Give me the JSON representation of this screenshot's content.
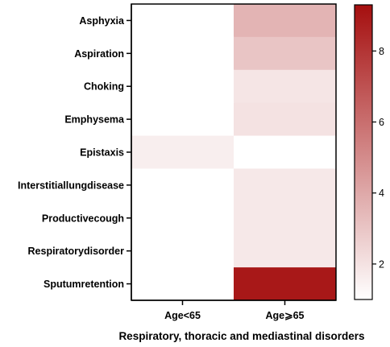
{
  "chart_data": {
    "type": "heatmap",
    "title": "",
    "xlabel": "Respiratory, thoracic and mediastinal disorders",
    "ylabel": "",
    "columns": [
      "Age<65",
      "Age⩾65"
    ],
    "rows": [
      "Asphyxia",
      "Aspiration",
      "Choking",
      "Emphysema",
      "Epistaxis",
      "Interstitiallungdisease",
      "Productivecough",
      "Respiratorydisorder",
      "Sputumretention"
    ],
    "values": [
      [
        1.0,
        3.6
      ],
      [
        1.0,
        3.0
      ],
      [
        1.0,
        1.9
      ],
      [
        1.0,
        2.0
      ],
      [
        1.6,
        1.0
      ],
      [
        1.0,
        1.8
      ],
      [
        1.0,
        1.8
      ],
      [
        1.0,
        1.8
      ],
      [
        1.0,
        9.0
      ]
    ],
    "colorbar": {
      "min": 1.0,
      "max": 9.3,
      "ticks": [
        2,
        4,
        6,
        8
      ],
      "color_low": "#ffffff",
      "color_high": "#a50f0f"
    }
  }
}
